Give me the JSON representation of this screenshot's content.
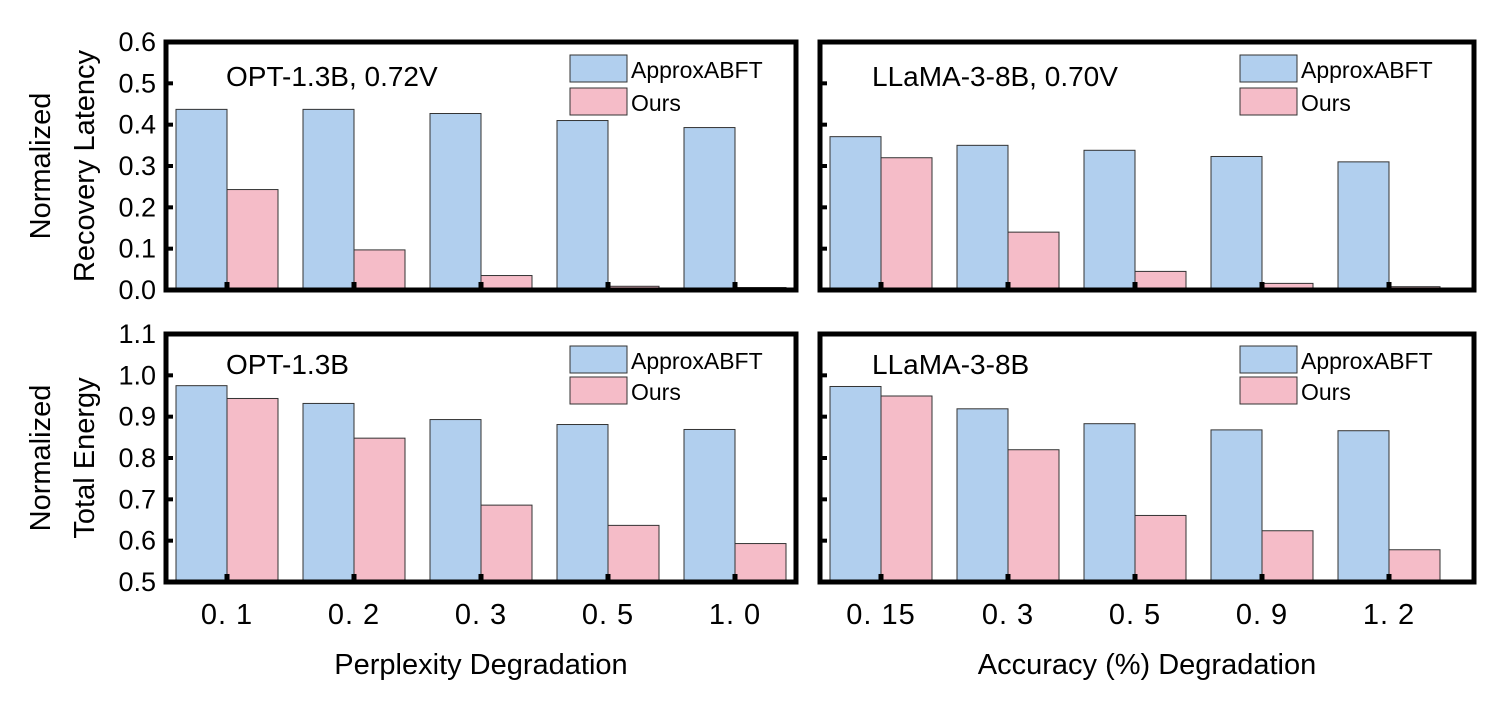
{
  "chart_data": [
    {
      "id": "opt-latency",
      "type": "bar",
      "title": "OPT-1.3B, 0.72V",
      "ylabel_lines": [
        "Normalized",
        "Recovery Latency"
      ],
      "ylim": [
        0.0,
        0.6
      ],
      "yticks": [
        "0.0",
        "0.1",
        "0.2",
        "0.3",
        "0.4",
        "0.5",
        "0.6"
      ],
      "categories": [
        "0. 1",
        "0. 2",
        "0. 3",
        "0. 5",
        "1. 0"
      ],
      "series": [
        {
          "name": "ApproxABFT",
          "color": "#b1cfee",
          "values": [
            0.437,
            0.437,
            0.427,
            0.41,
            0.393
          ]
        },
        {
          "name": "Ours",
          "color": "#f5bcc8",
          "values": [
            0.243,
            0.097,
            0.035,
            0.009,
            0.006
          ]
        }
      ]
    },
    {
      "id": "llama-latency",
      "type": "bar",
      "title": "LLaMA-3-8B, 0.70V",
      "ylim": [
        0.0,
        0.6
      ],
      "categories": [
        "0. 15",
        "0. 3",
        "0. 5",
        "0. 9",
        "1. 2"
      ],
      "series": [
        {
          "name": "ApproxABFT",
          "color": "#b1cfee",
          "values": [
            0.371,
            0.35,
            0.338,
            0.323,
            0.31
          ]
        },
        {
          "name": "Ours",
          "color": "#f5bcc8",
          "values": [
            0.32,
            0.14,
            0.045,
            0.016,
            0.008
          ]
        }
      ]
    },
    {
      "id": "opt-energy",
      "type": "bar",
      "title": "OPT-1.3B",
      "ylabel_lines": [
        "Normalized",
        "Total Energy"
      ],
      "ylim": [
        0.5,
        1.1
      ],
      "yticks": [
        "0.5",
        "0.6",
        "0.7",
        "0.8",
        "0.9",
        "1.0",
        "1.1"
      ],
      "categories": [
        "0. 1",
        "0. 2",
        "0. 3",
        "0. 5",
        "1. 0"
      ],
      "xlabel": "Perplexity Degradation",
      "series": [
        {
          "name": "ApproxABFT",
          "color": "#b1cfee",
          "values": [
            0.975,
            0.932,
            0.893,
            0.881,
            0.869
          ]
        },
        {
          "name": "Ours",
          "color": "#f5bcc8",
          "values": [
            0.944,
            0.848,
            0.686,
            0.637,
            0.593
          ]
        }
      ]
    },
    {
      "id": "llama-energy",
      "type": "bar",
      "title": "LLaMA-3-8B",
      "ylim": [
        0.5,
        1.1
      ],
      "categories": [
        "0. 15",
        "0. 3",
        "0. 5",
        "0. 9",
        "1. 2"
      ],
      "xlabel": "Accuracy (%) Degradation",
      "series": [
        {
          "name": "ApproxABFT",
          "color": "#b1cfee",
          "values": [
            0.973,
            0.919,
            0.883,
            0.868,
            0.866
          ]
        },
        {
          "name": "Ours",
          "color": "#f5bcc8",
          "values": [
            0.95,
            0.82,
            0.661,
            0.624,
            0.578
          ]
        }
      ]
    }
  ]
}
